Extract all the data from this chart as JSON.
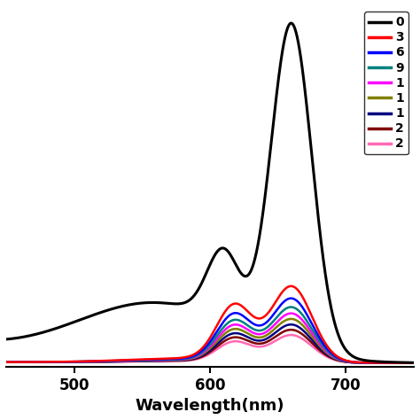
{
  "xlabel": "Wavelength(nm)",
  "xlim": [
    450,
    750
  ],
  "ylim": [
    -0.01,
    1.05
  ],
  "x_ticks": [
    500,
    600,
    700
  ],
  "legend_labels": [
    "0",
    "3",
    "6",
    "9",
    "1",
    "1",
    "1",
    "2",
    "2"
  ],
  "legend_colors": [
    "#000000",
    "#ff0000",
    "#0000ff",
    "#008080",
    "#ff00ff",
    "#808000",
    "#000080",
    "#800000",
    "#ff69b4"
  ],
  "line_widths": [
    2.2,
    1.8,
    1.8,
    1.8,
    1.8,
    1.8,
    1.8,
    1.8,
    1.8
  ],
  "background_color": "#ffffff",
  "black_peak1_mu": 660,
  "black_peak1_sigma": 15,
  "black_peak1_amp": 1.0,
  "black_peak2_mu": 610,
  "black_peak2_sigma": 12,
  "black_peak2_amp": 0.22,
  "black_broad_mu": 560,
  "black_broad_sigma": 60,
  "black_broad_amp": 0.18,
  "black_baseline_amp": 0.04,
  "black_baseline_decay": 60,
  "colored_peak1_mu": 660,
  "colored_peak1_sigma": 15,
  "colored_peak2_mu": 618,
  "colored_peak2_sigma": 13,
  "colored_peak2_ratio": 0.72,
  "colored_broad_mu": 590,
  "colored_broad_sigma": 50,
  "colored_broad_ratio": 0.06,
  "colored_scales": [
    0.22,
    0.185,
    0.16,
    0.142,
    0.126,
    0.11,
    0.095,
    0.08
  ]
}
